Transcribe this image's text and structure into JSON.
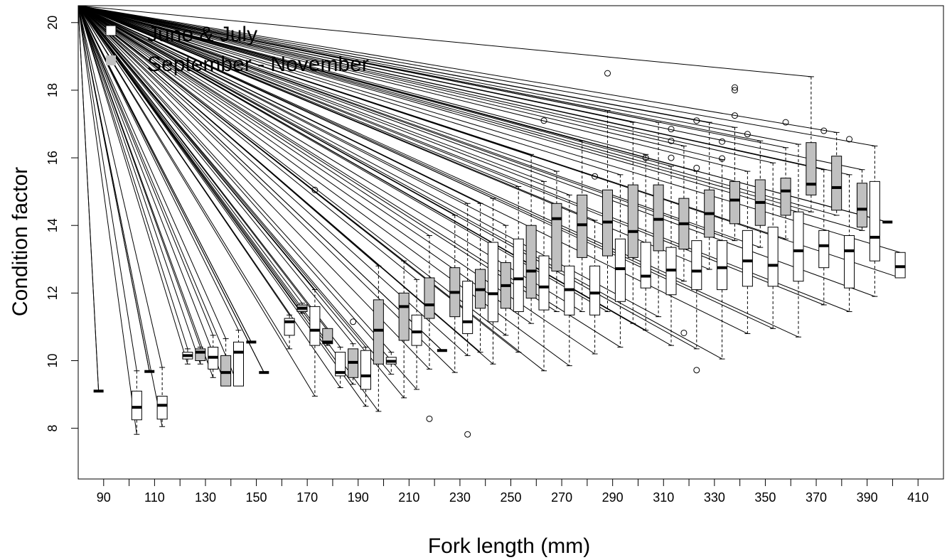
{
  "chart_data": {
    "type": "boxplot",
    "xlabel": "Fork length (mm)",
    "ylabel": "Condition factor",
    "xlim": [
      80,
      420
    ],
    "ylim": [
      6.5,
      20.5
    ],
    "x_ticks": [
      90,
      110,
      130,
      150,
      170,
      190,
      210,
      230,
      250,
      270,
      290,
      310,
      330,
      350,
      370,
      390,
      410
    ],
    "y_ticks": [
      8,
      10,
      12,
      14,
      16,
      18,
      20
    ],
    "legend": {
      "placement": "top-left",
      "entries": [
        {
          "label": "June & July",
          "fill": "#ffffff"
        },
        {
          "label": "September - November",
          "fill": "#c0c0c0"
        }
      ]
    },
    "colors": {
      "june_july": "#ffffff",
      "sept_nov": "#c0c0c0",
      "stroke": "#000000"
    },
    "series": [
      {
        "name": "June & July",
        "boxes": [
          {
            "x": 103,
            "q1": 8.25,
            "median": 8.62,
            "q3": 9.1,
            "lo": 7.82,
            "hi": 9.7,
            "outliers": []
          },
          {
            "x": 113,
            "q1": 8.27,
            "median": 8.68,
            "q3": 8.95,
            "lo": 8.05,
            "hi": 9.8,
            "outliers": []
          },
          {
            "x": 123,
            "q1": 10.05,
            "median": 10.15,
            "q3": 10.25,
            "lo": 9.9,
            "hi": 10.35,
            "outliers": []
          },
          {
            "x": 133,
            "q1": 9.75,
            "median": 10.1,
            "q3": 10.4,
            "lo": 9.5,
            "hi": 10.75,
            "outliers": []
          },
          {
            "x": 143,
            "q1": 9.25,
            "median": 10.25,
            "q3": 10.55,
            "lo": 9.25,
            "hi": 10.9,
            "outliers": []
          },
          {
            "x": 163,
            "q1": 10.75,
            "median": 11.15,
            "q3": 11.25,
            "lo": 10.35,
            "hi": 11.35,
            "outliers": []
          },
          {
            "x": 173,
            "q1": 10.45,
            "median": 10.9,
            "q3": 11.6,
            "lo": 8.95,
            "hi": 12.1,
            "outliers": [
              15.05
            ]
          },
          {
            "x": 183,
            "q1": 9.55,
            "median": 9.65,
            "q3": 10.25,
            "lo": 9.2,
            "hi": 10.4,
            "outliers": []
          },
          {
            "x": 193,
            "q1": 9.15,
            "median": 9.55,
            "q3": 10.3,
            "lo": 8.65,
            "hi": 10.4,
            "outliers": []
          },
          {
            "x": 203,
            "q1": 9.9,
            "median": 9.98,
            "q3": 10.1,
            "lo": 9.6,
            "hi": 10.25,
            "outliers": []
          },
          {
            "x": 213,
            "q1": 10.45,
            "median": 10.85,
            "q3": 11.35,
            "lo": 9.15,
            "hi": 12.4,
            "outliers": []
          },
          {
            "x": 223,
            "q1": 10.3,
            "median": 10.3,
            "q3": 10.3,
            "lo": 10.3,
            "hi": 10.3,
            "outliers": []
          },
          {
            "x": 233,
            "q1": 10.8,
            "median": 11.15,
            "q3": 12.35,
            "lo": 10.15,
            "hi": 14.65,
            "outliers": [
              7.82
            ]
          },
          {
            "x": 243,
            "q1": 11.15,
            "median": 11.98,
            "q3": 13.5,
            "lo": 9.9,
            "hi": 14.8,
            "outliers": []
          },
          {
            "x": 253,
            "q1": 11.45,
            "median": 12.42,
            "q3": 13.6,
            "lo": 10.25,
            "hi": 15.15,
            "outliers": []
          },
          {
            "x": 263,
            "q1": 11.5,
            "median": 12.18,
            "q3": 13.1,
            "lo": 9.7,
            "hi": 15.3,
            "outliers": [
              17.1
            ]
          },
          {
            "x": 273,
            "q1": 11.35,
            "median": 12.1,
            "q3": 12.8,
            "lo": 9.85,
            "hi": 14.9,
            "outliers": []
          },
          {
            "x": 283,
            "q1": 11.35,
            "median": 12.0,
            "q3": 12.8,
            "lo": 10.2,
            "hi": 14.15,
            "outliers": [
              15.45
            ]
          },
          {
            "x": 293,
            "q1": 11.75,
            "median": 12.72,
            "q3": 13.6,
            "lo": 10.4,
            "hi": 15.5,
            "outliers": []
          },
          {
            "x": 303,
            "q1": 12.15,
            "median": 12.5,
            "q3": 13.5,
            "lo": 10.9,
            "hi": 16.1,
            "outliers": [
              16.0
            ]
          },
          {
            "x": 313,
            "q1": 11.95,
            "median": 12.68,
            "q3": 13.35,
            "lo": 10.45,
            "hi": 15.75,
            "outliers": [
              16.0,
              16.5,
              16.85
            ]
          },
          {
            "x": 323,
            "q1": 12.1,
            "median": 12.65,
            "q3": 13.55,
            "lo": 10.35,
            "hi": 15.6,
            "outliers": [
              15.7,
              17.1,
              9.72
            ]
          },
          {
            "x": 333,
            "q1": 12.1,
            "median": 12.75,
            "q3": 13.55,
            "lo": 10.05,
            "hi": 15.95,
            "outliers": [
              15.98,
              16.48
            ]
          },
          {
            "x": 343,
            "q1": 12.2,
            "median": 12.95,
            "q3": 13.85,
            "lo": 10.8,
            "hi": 15.6,
            "outliers": [
              16.7
            ]
          },
          {
            "x": 353,
            "q1": 12.2,
            "median": 12.82,
            "q3": 13.95,
            "lo": 10.95,
            "hi": 15.85,
            "outliers": []
          },
          {
            "x": 363,
            "q1": 12.35,
            "median": 13.25,
            "q3": 14.4,
            "lo": 10.7,
            "hi": 16.4,
            "outliers": []
          },
          {
            "x": 373,
            "q1": 12.75,
            "median": 13.4,
            "q3": 13.85,
            "lo": 11.65,
            "hi": 15.65,
            "outliers": [
              16.8
            ]
          },
          {
            "x": 383,
            "q1": 12.15,
            "median": 13.25,
            "q3": 13.7,
            "lo": 11.45,
            "hi": 15.5,
            "outliers": [
              16.55
            ]
          },
          {
            "x": 393,
            "q1": 12.95,
            "median": 13.65,
            "q3": 15.3,
            "lo": 11.9,
            "hi": 16.35,
            "outliers": []
          },
          {
            "x": 403,
            "q1": 12.45,
            "median": 12.78,
            "q3": 13.2,
            "lo": 12.45,
            "hi": 13.2,
            "outliers": []
          }
        ]
      },
      {
        "name": "September - November",
        "boxes": [
          {
            "x": 88,
            "q1": 9.1,
            "median": 9.1,
            "q3": 9.1,
            "lo": 9.1,
            "hi": 9.1,
            "outliers": []
          },
          {
            "x": 108,
            "q1": 9.68,
            "median": 9.68,
            "q3": 9.68,
            "lo": 9.68,
            "hi": 9.68,
            "outliers": []
          },
          {
            "x": 128,
            "q1": 10.0,
            "median": 10.25,
            "q3": 10.35,
            "lo": 9.9,
            "hi": 10.4,
            "outliers": []
          },
          {
            "x": 138,
            "q1": 9.25,
            "median": 9.65,
            "q3": 10.15,
            "lo": 9.25,
            "hi": 10.65,
            "outliers": []
          },
          {
            "x": 148,
            "q1": 10.55,
            "median": 10.55,
            "q3": 10.55,
            "lo": 10.55,
            "hi": 10.55,
            "outliers": []
          },
          {
            "x": 153,
            "q1": 9.65,
            "median": 9.65,
            "q3": 9.65,
            "lo": 9.65,
            "hi": 9.65,
            "outliers": []
          },
          {
            "x": 168,
            "q1": 11.45,
            "median": 11.55,
            "q3": 11.65,
            "lo": 11.4,
            "hi": 11.7,
            "outliers": []
          },
          {
            "x": 178,
            "q1": 10.5,
            "median": 10.55,
            "q3": 10.95,
            "lo": 10.45,
            "hi": 10.95,
            "outliers": []
          },
          {
            "x": 188,
            "q1": 9.5,
            "median": 9.95,
            "q3": 10.35,
            "lo": 9.3,
            "hi": 10.5,
            "outliers": [
              11.15
            ]
          },
          {
            "x": 198,
            "q1": 9.9,
            "median": 10.9,
            "q3": 11.8,
            "lo": 8.5,
            "hi": 12.8,
            "outliers": []
          },
          {
            "x": 208,
            "q1": 10.6,
            "median": 11.6,
            "q3": 12.0,
            "lo": 8.9,
            "hi": 12.95,
            "outliers": []
          },
          {
            "x": 218,
            "q1": 11.25,
            "median": 11.65,
            "q3": 12.45,
            "lo": 9.75,
            "hi": 13.7,
            "outliers": [
              8.28
            ]
          },
          {
            "x": 228,
            "q1": 11.3,
            "median": 12.02,
            "q3": 12.75,
            "lo": 9.65,
            "hi": 14.3,
            "outliers": []
          },
          {
            "x": 238,
            "q1": 11.55,
            "median": 12.1,
            "q3": 12.7,
            "lo": 10.25,
            "hi": 14.65,
            "outliers": []
          },
          {
            "x": 248,
            "q1": 11.55,
            "median": 12.22,
            "q3": 12.9,
            "lo": 10.75,
            "hi": 14.0,
            "outliers": []
          },
          {
            "x": 258,
            "q1": 11.85,
            "median": 12.65,
            "q3": 14.0,
            "lo": 11.1,
            "hi": 16.1,
            "outliers": []
          },
          {
            "x": 268,
            "q1": 12.65,
            "median": 14.2,
            "q3": 14.65,
            "lo": 11.45,
            "hi": 15.6,
            "outliers": []
          },
          {
            "x": 278,
            "q1": 13.05,
            "median": 14.02,
            "q3": 14.9,
            "lo": 11.45,
            "hi": 16.5,
            "outliers": []
          },
          {
            "x": 288,
            "q1": 13.1,
            "median": 14.1,
            "q3": 15.05,
            "lo": 11.45,
            "hi": 17.4,
            "outliers": [
              18.5
            ]
          },
          {
            "x": 298,
            "q1": 13.05,
            "median": 13.82,
            "q3": 15.2,
            "lo": 11.1,
            "hi": 17.05,
            "outliers": []
          },
          {
            "x": 308,
            "q1": 13.25,
            "median": 14.18,
            "q3": 15.2,
            "lo": 11.3,
            "hi": 17.05,
            "outliers": []
          },
          {
            "x": 318,
            "q1": 13.3,
            "median": 14.05,
            "q3": 14.8,
            "lo": 12.35,
            "hi": 16.35,
            "outliers": [
              10.82
            ]
          },
          {
            "x": 328,
            "q1": 13.65,
            "median": 14.35,
            "q3": 15.05,
            "lo": 12.7,
            "hi": 17.05,
            "outliers": []
          },
          {
            "x": 338,
            "q1": 14.05,
            "median": 14.75,
            "q3": 15.3,
            "lo": 13.55,
            "hi": 16.9,
            "outliers": [
              17.25,
              18.0,
              18.08
            ]
          },
          {
            "x": 348,
            "q1": 14.0,
            "median": 14.68,
            "q3": 15.35,
            "lo": 13.35,
            "hi": 16.5,
            "outliers": []
          },
          {
            "x": 358,
            "q1": 14.3,
            "median": 15.02,
            "q3": 15.4,
            "lo": 13.6,
            "hi": 16.3,
            "outliers": [
              17.05
            ]
          },
          {
            "x": 368,
            "q1": 14.9,
            "median": 15.22,
            "q3": 16.45,
            "lo": 14.4,
            "hi": 18.4,
            "outliers": []
          },
          {
            "x": 378,
            "q1": 14.45,
            "median": 15.12,
            "q3": 16.05,
            "lo": 14.3,
            "hi": 16.75,
            "outliers": []
          },
          {
            "x": 388,
            "q1": 13.95,
            "median": 14.48,
            "q3": 15.25,
            "lo": 13.85,
            "hi": 15.65,
            "outliers": []
          },
          {
            "x": 398,
            "q1": 14.1,
            "median": 14.1,
            "q3": 14.1,
            "lo": 14.1,
            "hi": 14.1,
            "outliers": []
          }
        ]
      }
    ],
    "fan_lines": {
      "description": "straight black lines from the upper-left corner to the box whisker tops",
      "origin": [
        80,
        20.5
      ],
      "count": 120
    }
  }
}
